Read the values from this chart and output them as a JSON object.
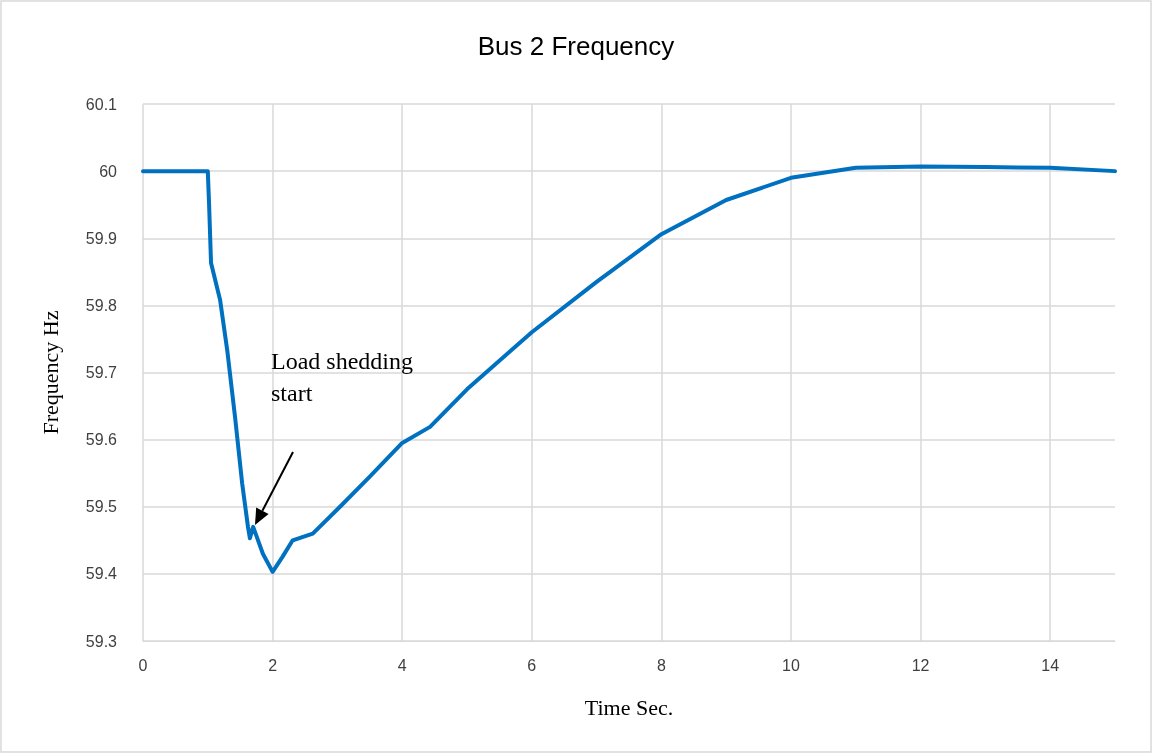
{
  "chart_data": {
    "type": "line",
    "title": "Bus 2 Frequency",
    "xlabel": "Time Sec.",
    "ylabel": "Frequency Hz",
    "x": [
      0,
      1,
      1.02,
      1.05,
      1.19,
      1.3,
      1.42,
      1.53,
      1.62,
      1.65,
      1.7,
      1.85,
      2.0,
      2.15,
      2.31,
      2.62,
      3.04,
      3.5,
      4,
      4.43,
      5,
      6,
      7,
      8,
      9,
      10,
      11,
      12,
      13,
      14,
      15
    ],
    "series": [
      {
        "color": "#0070c0",
        "values": [
          60,
          60,
          59.95,
          59.863,
          59.808,
          59.733,
          59.634,
          59.535,
          59.47,
          59.453,
          59.47,
          59.43,
          59.403,
          59.425,
          59.45,
          59.46,
          59.5,
          59.545,
          59.595,
          59.619,
          59.675,
          59.76,
          59.835,
          59.906,
          59.957,
          59.99,
          60.005,
          60.007,
          60.006,
          60.005,
          60.0
        ]
      }
    ],
    "annotations": [
      "Load shedding\nstart"
    ],
    "xlim": [
      0,
      15
    ],
    "xticks": [
      0,
      2,
      4,
      6,
      8,
      10,
      12,
      14
    ],
    "ylim": [
      59.3,
      60.1
    ],
    "yticks": [
      59.3,
      59.4,
      59.5,
      59.6,
      59.7,
      59.8,
      59.9,
      60,
      60.1
    ],
    "grid": true,
    "marker": "none",
    "line_style": "solid"
  }
}
